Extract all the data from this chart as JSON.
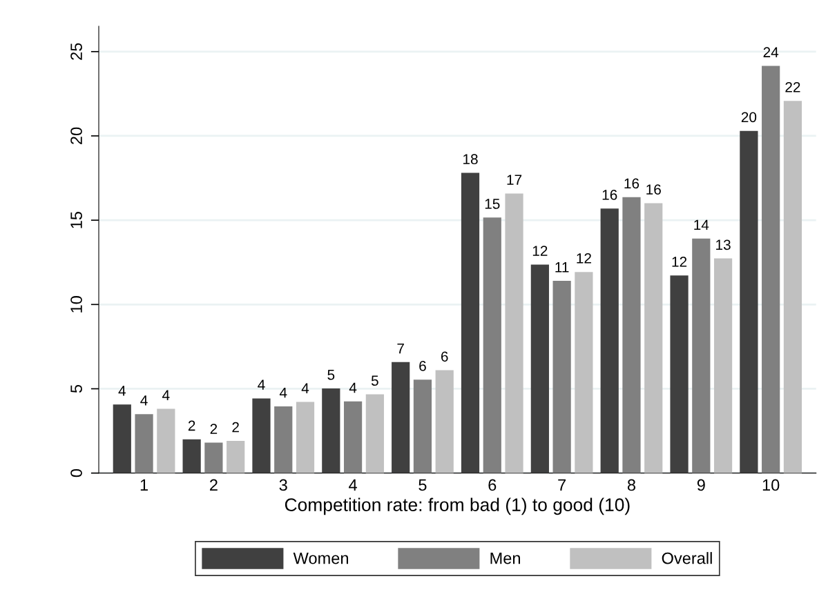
{
  "chart_data": {
    "type": "bar",
    "xlabel": "Competition rate: from bad (1) to good (10)",
    "categories": [
      "1",
      "2",
      "3",
      "4",
      "5",
      "6",
      "7",
      "8",
      "9",
      "10"
    ],
    "series": [
      {
        "name": "Women",
        "color": "#404040",
        "values": [
          4.07,
          2.0,
          4.43,
          5.02,
          6.58,
          17.81,
          12.37,
          15.69,
          11.72,
          20.3
        ],
        "value_labels": [
          "4",
          "2",
          "4",
          "5",
          "7",
          "18",
          "12",
          "16",
          "12",
          "20"
        ]
      },
      {
        "name": "Men",
        "color": "#808080",
        "values": [
          3.5,
          1.81,
          3.96,
          4.25,
          5.54,
          15.16,
          11.4,
          16.37,
          13.91,
          24.15
        ],
        "value_labels": [
          "4",
          "2",
          "4",
          "4",
          "6",
          "15",
          "11",
          "16",
          "14",
          "24"
        ]
      },
      {
        "name": "Overall",
        "color": "#c0c0c0",
        "values": [
          3.81,
          1.91,
          4.22,
          4.67,
          6.1,
          16.58,
          11.93,
          16.01,
          12.73,
          22.08
        ],
        "value_labels": [
          "4",
          "2",
          "4",
          "5",
          "6",
          "17",
          "12",
          "16",
          "13",
          "22"
        ]
      }
    ],
    "ylim": [
      0,
      26.5
    ],
    "yticks": [
      0,
      5,
      10,
      15,
      20,
      25
    ],
    "grid": "y",
    "legend": "bottom"
  }
}
